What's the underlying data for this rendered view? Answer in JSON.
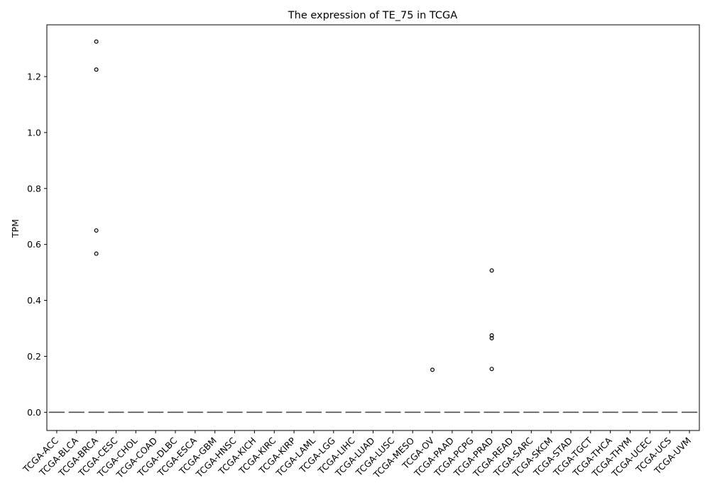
{
  "chart_data": {
    "type": "box",
    "title": "The expression of TE_75 in TCGA",
    "xlabel": "",
    "ylabel": "TPM",
    "ylim": [
      -0.065,
      1.385
    ],
    "yticks": [
      0.0,
      0.2,
      0.4,
      0.6,
      0.8,
      1.0,
      1.2
    ],
    "ytick_labels": [
      "0.0",
      "0.2",
      "0.4",
      "0.6",
      "0.8",
      "1.0",
      "1.2"
    ],
    "grid": false,
    "legend": "none",
    "categories": [
      "TCGA-ACC",
      "TCGA-BLCA",
      "TCGA-BRCA",
      "TCGA-CESC",
      "TCGA-CHOL",
      "TCGA-COAD",
      "TCGA-DLBC",
      "TCGA-ESCA",
      "TCGA-GBM",
      "TCGA-HNSC",
      "TCGA-KICH",
      "TCGA-KIRC",
      "TCGA-KIRP",
      "TCGA-LAML",
      "TCGA-LGG",
      "TCGA-LIHC",
      "TCGA-LUAD",
      "TCGA-LUSC",
      "TCGA-MESO",
      "TCGA-OV",
      "TCGA-PAAD",
      "TCGA-PCPG",
      "TCGA-PRAD",
      "TCGA-READ",
      "TCGA-SARC",
      "TCGA-SKCM",
      "TCGA-STAD",
      "TCGA-TGCT",
      "TCGA-THCA",
      "TCGA-THYM",
      "TCGA-UCEC",
      "TCGA-UCS",
      "TCGA-UVM"
    ],
    "medians": [
      0,
      0,
      0,
      0,
      0,
      0,
      0,
      0,
      0,
      0,
      0,
      0,
      0,
      0,
      0,
      0,
      0,
      0,
      0,
      0,
      0,
      0,
      0,
      0,
      0,
      0,
      0,
      0,
      0,
      0,
      0,
      0,
      0
    ],
    "outliers": [
      {
        "category": "TCGA-BRCA",
        "values": [
          1.325,
          1.225,
          0.65,
          0.567
        ]
      },
      {
        "category": "TCGA-OV",
        "values": [
          0.152
        ]
      },
      {
        "category": "TCGA-PRAD",
        "values": [
          0.507,
          0.275,
          0.265,
          0.155
        ]
      }
    ],
    "colors": {
      "box": "#4c4c4c",
      "outlier_edge": "#000000",
      "axes": "#000000"
    }
  }
}
